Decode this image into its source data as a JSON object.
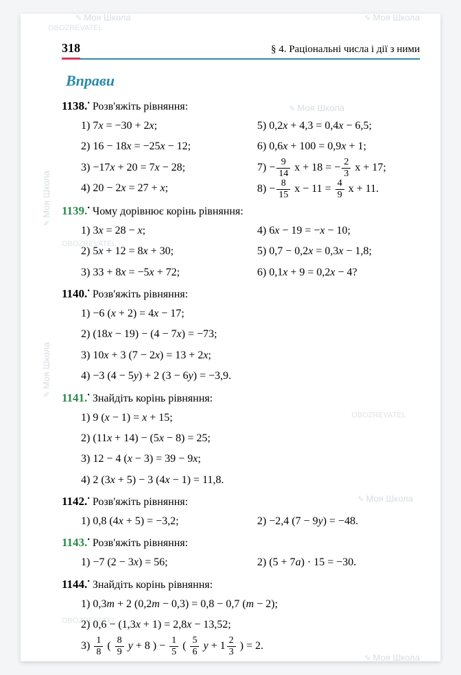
{
  "header": {
    "page_number": "318",
    "chapter": "§ 4. Раціональні числа і дії з ними"
  },
  "section_title": "Вправи",
  "colors": {
    "accent": "#2a8aa7",
    "rule": "#d9365b",
    "green": "#2a8a4a",
    "wm": "#b8c3ca"
  },
  "watermark": {
    "brand": "Моя Школа",
    "url": "OBOZREVATEL"
  },
  "problems": [
    {
      "num": "1138.",
      "green": false,
      "title": "Розв'яжіть рівняння:",
      "cols": 2,
      "left": [
        "1) 7x = −30 + 2x;",
        "2) 16 − 18x = −25x − 12;",
        "3) −17x + 20 = 7x − 28;",
        "4) 20 − 2x = 27 + x;"
      ],
      "right": [
        "5) 0,2x + 4,3 = 0,4x − 6,5;",
        "6) 0,6x + 100 = 0,9x + 1;",
        {
          "type": "frac",
          "pre": "7) −",
          "n": "9",
          "d": "14",
          "mid": " x + 18 = −",
          "n2": "2",
          "d2": "3",
          "post": " x + 17;"
        },
        {
          "type": "frac",
          "pre": "8) −",
          "n": "8",
          "d": "15",
          "mid": " x − 11 = ",
          "n2": "4",
          "d2": "9",
          "post": " x + 11."
        }
      ]
    },
    {
      "num": "1139.",
      "green": true,
      "title": "Чому дорівнює корінь рівняння:",
      "cols": 2,
      "left": [
        "1) 3x = 28 − x;",
        "2) 5x + 12 = 8x + 30;",
        "3) 33 + 8x = −5x + 72;"
      ],
      "right": [
        "4) 6x − 19 = −x − 10;",
        "5) 0,7 − 0,2x = 0,3x − 1,8;",
        "6) 0,1x + 9 = 0,2x − 4?"
      ]
    },
    {
      "num": "1140.",
      "green": false,
      "title": "Розв'яжіть рівняння:",
      "cols": 1,
      "left": [
        "1) −6 (x + 2) = 4x − 17;",
        "2) (18x − 19) − (4 − 7x) = −73;",
        "3) 10x + 3 (7 − 2x) = 13 + 2x;",
        "4) −3 (4 − 5y) + 2 (3 − 6y) = −3,9."
      ]
    },
    {
      "num": "1141.",
      "green": true,
      "title": "Знайдіть корінь рівняння:",
      "cols": 1,
      "left": [
        "1) 9 (x − 1) = x + 15;",
        "2) (11x + 14) − (5x − 8) = 25;",
        "3) 12 − 4 (x − 3) = 39 − 9x;",
        "4) 2 (3x + 5) − 3 (4x − 1) = 11,8."
      ]
    },
    {
      "num": "1142.",
      "green": false,
      "title": "Розв'яжіть рівняння:",
      "cols": 2,
      "left": [
        "1) 0,8 (4x + 5) = −3,2;"
      ],
      "right": [
        "2) −2,4 (7 − 9y) = −48."
      ]
    },
    {
      "num": "1143.",
      "green": true,
      "title": "Розв'яжіть рівняння:",
      "cols": 2,
      "left": [
        "1) −7 (2 − 3x) = 56;"
      ],
      "right": [
        "2) (5 + 7a) · 15 = −30."
      ]
    },
    {
      "num": "1144.",
      "green": false,
      "title": "Знайдіть корінь рівняння:",
      "cols": 1,
      "left": [
        "1) 0,3m + 2 (0,2m − 0,3) = 0,8 − 0,7 (m − 2);",
        "2) 0,6 − (1,3x + 1) = 2,8x − 13,52;",
        {
          "type": "bigfrac",
          "text": "3) "
        }
      ]
    }
  ]
}
